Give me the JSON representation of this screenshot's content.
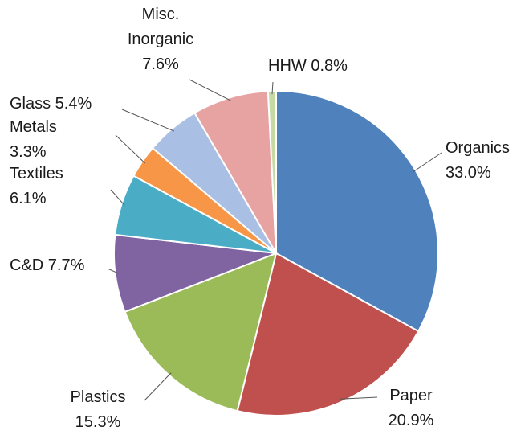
{
  "chart_data": {
    "type": "pie",
    "title": "",
    "unit": "%",
    "slices": [
      {
        "name": "Organics",
        "value": 33.0,
        "label_lines": [
          "Organics",
          "33.0%"
        ],
        "color": "#4F81BD"
      },
      {
        "name": "Paper",
        "value": 20.9,
        "label_lines": [
          "Paper",
          "20.9%"
        ],
        "color": "#C0504D"
      },
      {
        "name": "Plastics",
        "value": 15.3,
        "label_lines": [
          "Plastics",
          "15.3%"
        ],
        "color": "#9BBB59"
      },
      {
        "name": "C&D",
        "value": 7.7,
        "label_lines": [
          "C&D 7.7%"
        ],
        "color": "#8064A2"
      },
      {
        "name": "Textiles",
        "value": 6.1,
        "label_lines": [
          "Textiles",
          "6.1%"
        ],
        "color": "#4BACC6"
      },
      {
        "name": "Metals",
        "value": 3.3,
        "label_lines": [
          "Metals",
          "3.3%"
        ],
        "color": "#F79646"
      },
      {
        "name": "Glass",
        "value": 5.4,
        "label_lines": [
          "Glass 5.4%"
        ],
        "color": "#A9BFE4"
      },
      {
        "name": "Misc. Inorganic",
        "value": 7.6,
        "label_lines": [
          "Misc.",
          "Inorganic",
          "7.6%"
        ],
        "color": "#E6A3A2"
      },
      {
        "name": "HHW",
        "value": 0.8,
        "label_lines": [
          "HHW 0.8%"
        ],
        "color": "#C6DBA3"
      }
    ],
    "start_angle_deg": 0,
    "direction": "clockwise",
    "legend": "none",
    "data_labels": "outside-with-leader-lines"
  }
}
